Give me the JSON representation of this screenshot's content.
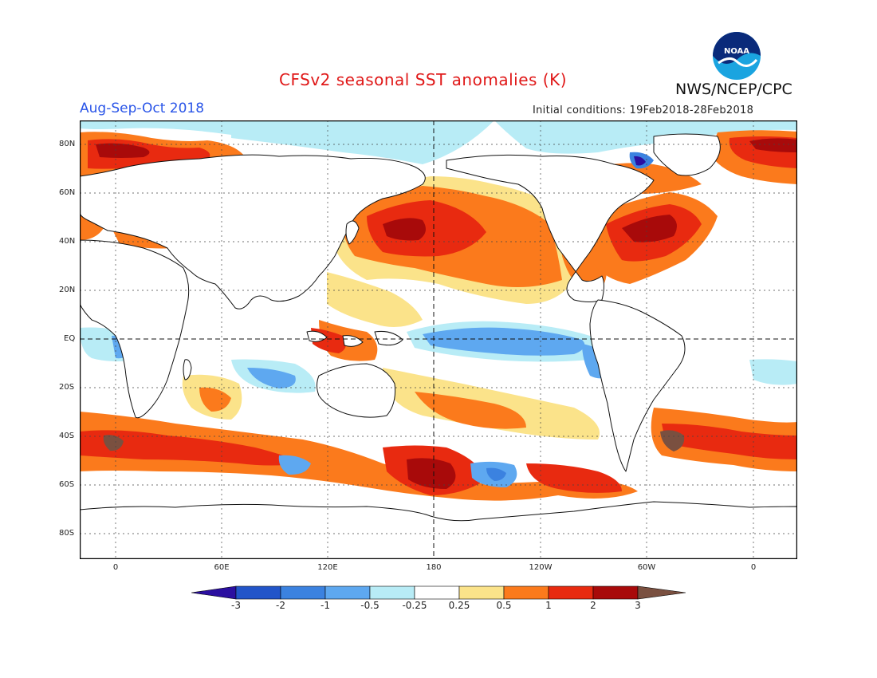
{
  "header": {
    "title": "CFSv2 seasonal SST anomalies (K)",
    "season": "Aug-Sep-Oct 2018",
    "initial_conditions": "Initial conditions: 19Feb2018-28Feb2018",
    "agency": "NWS/NCEP/CPC",
    "logo_text": "NOAA"
  },
  "axes": {
    "lat_labels": [
      "80N",
      "60N",
      "40N",
      "20N",
      "EQ",
      "20S",
      "40S",
      "60S",
      "80S"
    ],
    "lon_labels": [
      "0",
      "60E",
      "120E",
      "180",
      "120W",
      "60W",
      "0"
    ]
  },
  "colorbar": {
    "labels": [
      "-3",
      "-2",
      "-1",
      "-0.5",
      "-0.25",
      "0.25",
      "0.5",
      "1",
      "2",
      "3"
    ],
    "colors": [
      "#2b0fa0",
      "#2255c9",
      "#3b82e0",
      "#5ea8f0",
      "#b8ecf6",
      "#ffffff",
      "#fbe38a",
      "#fb7a1c",
      "#e82a10",
      "#a80a0a",
      "#7a5040"
    ]
  },
  "colors": {
    "title": "#e01818",
    "season": "#2a55e8",
    "warm": "#fb7a1c",
    "cold": "#3b82e0"
  }
}
